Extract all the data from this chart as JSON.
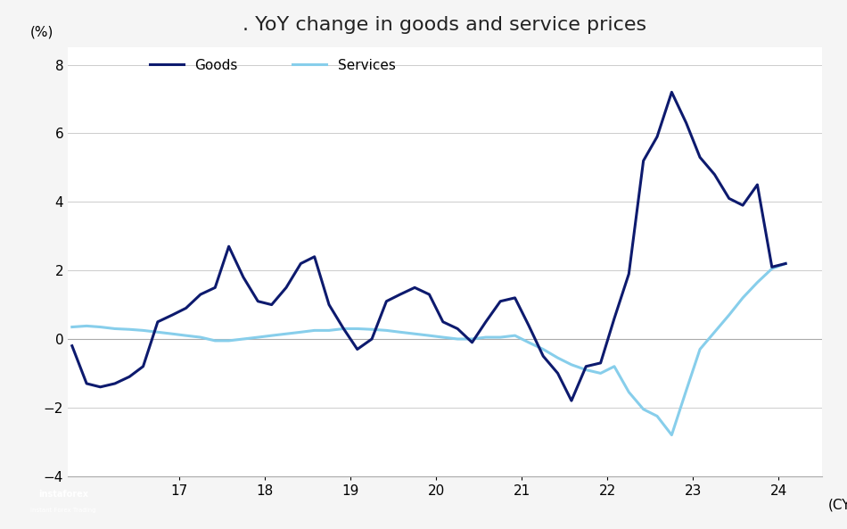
{
  "title": ". YoY change in goods and service prices",
  "ylabel": "(%)",
  "xlabel_suffix": "(CY)",
  "background_color": "#f5f5f5",
  "plot_bg_color": "#ffffff",
  "goods_color": "#0d1a6e",
  "services_color": "#87ceeb",
  "ylim": [
    -4,
    8.5
  ],
  "yticks": [
    -4,
    -2,
    0,
    2,
    4,
    6,
    8
  ],
  "xlim": [
    15.7,
    24.5
  ],
  "goods_x": [
    15.75,
    15.92,
    16.08,
    16.25,
    16.42,
    16.58,
    16.75,
    16.92,
    17.08,
    17.25,
    17.42,
    17.58,
    17.75,
    17.92,
    18.08,
    18.25,
    18.42,
    18.58,
    18.75,
    18.92,
    19.08,
    19.25,
    19.42,
    19.58,
    19.75,
    19.92,
    20.08,
    20.25,
    20.42,
    20.58,
    20.75,
    20.92,
    21.08,
    21.25,
    21.42,
    21.58,
    21.75,
    21.92,
    22.08,
    22.25,
    22.42,
    22.58,
    22.75,
    22.92,
    23.08,
    23.25,
    23.42,
    23.58,
    23.75,
    23.92,
    24.08
  ],
  "goods_y": [
    -0.2,
    -1.3,
    -1.4,
    -1.3,
    -1.1,
    -0.8,
    0.5,
    0.7,
    0.9,
    1.3,
    1.5,
    2.7,
    1.8,
    1.1,
    1.0,
    1.5,
    2.2,
    2.4,
    1.0,
    0.3,
    -0.3,
    0.0,
    1.1,
    1.3,
    1.5,
    1.3,
    0.5,
    0.3,
    -0.1,
    0.5,
    1.1,
    1.2,
    0.4,
    -0.5,
    -1.0,
    -1.8,
    -0.8,
    -0.7,
    0.6,
    1.9,
    5.2,
    5.9,
    7.2,
    6.3,
    5.3,
    4.8,
    4.1,
    3.9,
    4.5,
    2.1,
    2.2
  ],
  "services_x": [
    15.75,
    15.92,
    16.08,
    16.25,
    16.42,
    16.58,
    16.75,
    16.92,
    17.08,
    17.25,
    17.42,
    17.58,
    17.75,
    17.92,
    18.08,
    18.25,
    18.42,
    18.58,
    18.75,
    18.92,
    19.08,
    19.25,
    19.42,
    19.58,
    19.75,
    19.92,
    20.08,
    20.25,
    20.42,
    20.58,
    20.75,
    20.92,
    21.08,
    21.25,
    21.42,
    21.58,
    21.75,
    21.92,
    22.08,
    22.25,
    22.42,
    22.58,
    22.75,
    22.92,
    23.08,
    23.25,
    23.42,
    23.58,
    23.75,
    23.92,
    24.08
  ],
  "services_y": [
    0.35,
    0.38,
    0.35,
    0.3,
    0.28,
    0.25,
    0.2,
    0.15,
    0.1,
    0.05,
    -0.05,
    -0.05,
    0.0,
    0.05,
    0.1,
    0.15,
    0.2,
    0.25,
    0.25,
    0.3,
    0.3,
    0.28,
    0.25,
    0.2,
    0.15,
    0.1,
    0.05,
    0.0,
    0.0,
    0.05,
    0.05,
    0.1,
    -0.1,
    -0.3,
    -0.55,
    -0.75,
    -0.9,
    -1.0,
    -0.8,
    -1.55,
    -2.05,
    -2.25,
    -2.8,
    -1.5,
    -0.3,
    0.2,
    0.7,
    1.2,
    1.65,
    2.05,
    2.2
  ],
  "legend_goods": "Goods",
  "legend_services": "Services",
  "line_width": 2.2,
  "title_fontsize": 16,
  "tick_fontsize": 11,
  "ylabel_fontsize": 11,
  "legend_fontsize": 11,
  "grid_color": "#cccccc",
  "spine_color": "#aaaaaa"
}
